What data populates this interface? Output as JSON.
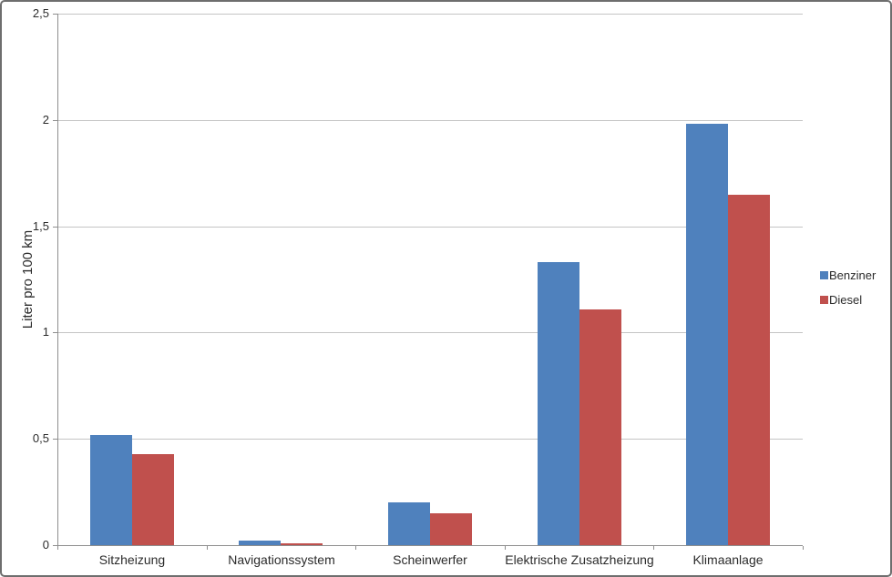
{
  "chart_data": {
    "type": "bar",
    "title": "",
    "xlabel": "",
    "ylabel": "Liter pro 100 km",
    "ylim": [
      0,
      2.5
    ],
    "grid": true,
    "legend_position": "right",
    "yticks": [
      {
        "value": 0,
        "label": "0"
      },
      {
        "value": 0.5,
        "label": "0,5"
      },
      {
        "value": 1,
        "label": "1"
      },
      {
        "value": 1.5,
        "label": "1,5"
      },
      {
        "value": 2,
        "label": "2"
      },
      {
        "value": 2.5,
        "label": "2,5"
      }
    ],
    "categories": [
      "Sitzheizung",
      "Navigationssystem",
      "Scheinwerfer",
      "Elektrische Zusatzheizung",
      "Klimaanlage"
    ],
    "series": [
      {
        "name": "Benziner",
        "color": "#4F81BD",
        "values": [
          0.52,
          0.02,
          0.2,
          1.33,
          1.98
        ]
      },
      {
        "name": "Diesel",
        "color": "#C0504D",
        "values": [
          0.43,
          0.01,
          0.15,
          1.11,
          1.65
        ]
      }
    ]
  },
  "colors": {
    "benziner": "#4F81BD",
    "diesel": "#C0504D",
    "gridline": "#c4c4c4",
    "axis": "#8e8e8e",
    "text": "#2b2b2b",
    "frame_border": "#6e6e6e",
    "background": "#ffffff"
  }
}
